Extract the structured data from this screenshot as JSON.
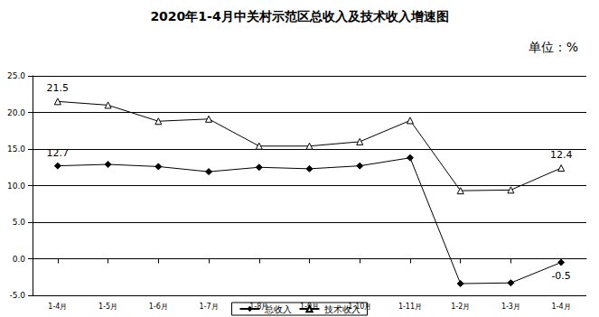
{
  "chart_data": {
    "type": "line",
    "title": "2020年1-4月中关村示范区总收入及技术收入增速图",
    "subtitle": "单位：%",
    "categories": [
      "1-4月",
      "1-5月",
      "1-6月",
      "1-7月",
      "1-8月",
      "1-9月",
      "1-10月",
      "1-11月",
      "1-2月",
      "1-3月",
      "1-4月"
    ],
    "series": [
      {
        "name": "总收入",
        "color": "#000000",
        "marker": "diamond",
        "values": [
          12.7,
          12.9,
          12.6,
          11.9,
          12.5,
          12.3,
          12.7,
          13.8,
          -3.4,
          -3.3,
          -0.5
        ],
        "value_labels": [
          "12.7",
          null,
          null,
          null,
          null,
          null,
          null,
          null,
          null,
          null,
          "-0.5"
        ]
      },
      {
        "name": "技术收入",
        "color": "#000000",
        "marker": "triangle-open",
        "values": [
          21.5,
          21.0,
          18.8,
          19.1,
          15.4,
          15.4,
          16.0,
          18.9,
          9.3,
          9.4,
          12.4
        ],
        "value_labels": [
          "21.5",
          null,
          null,
          null,
          null,
          null,
          null,
          null,
          null,
          null,
          "12.4"
        ]
      }
    ],
    "ylim": [
      -5,
      25
    ],
    "yticks": [
      {
        "value": -5,
        "label": "-5.0"
      },
      {
        "value": 0,
        "label": "0.0"
      },
      {
        "value": 5,
        "label": "5.0"
      },
      {
        "value": 10,
        "label": "10.0"
      },
      {
        "value": 15,
        "label": "15.0"
      },
      {
        "value": 20,
        "label": "20.0"
      },
      {
        "value": 25,
        "label": "25.0"
      }
    ],
    "grid": true,
    "legend": "bottom",
    "data_labels": true
  }
}
